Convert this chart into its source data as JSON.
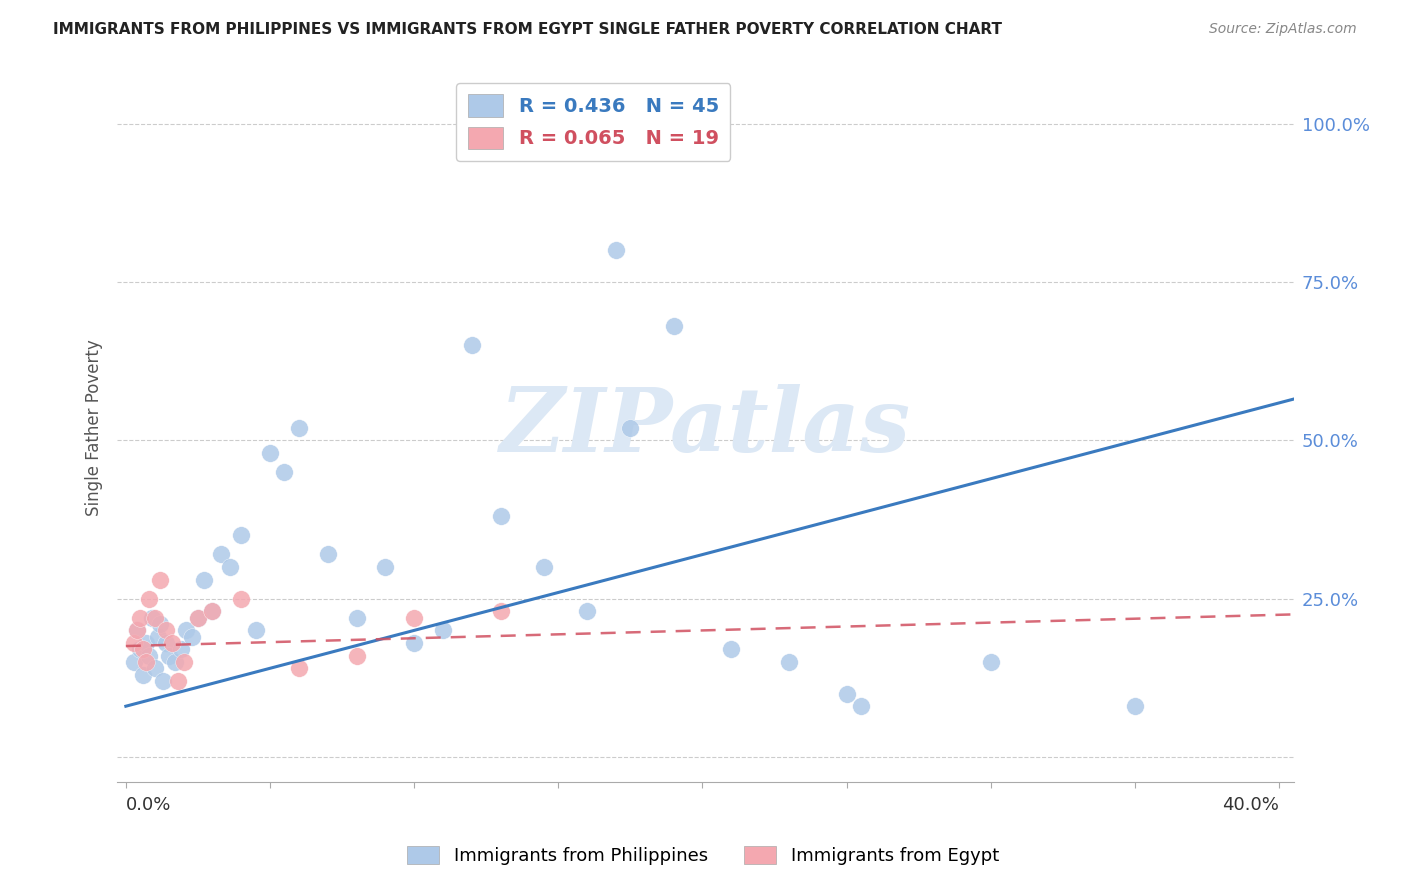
{
  "title": "IMMIGRANTS FROM PHILIPPINES VS IMMIGRANTS FROM EGYPT SINGLE FATHER POVERTY CORRELATION CHART",
  "source": "Source: ZipAtlas.com",
  "ylabel": "Single Father Poverty",
  "philippines_R": 0.436,
  "philippines_N": 45,
  "egypt_R": 0.065,
  "egypt_N": 19,
  "philippines_color": "#aec9e8",
  "egypt_color": "#f4a8b0",
  "philippines_line_color": "#3a7abf",
  "egypt_line_color": "#d05060",
  "watermark_color": "#dce8f5",
  "grid_color": "#cccccc",
  "ytick_color": "#5b8dd9",
  "xlim": [
    -0.003,
    0.405
  ],
  "ylim": [
    -0.04,
    1.08
  ],
  "yticks": [
    0.0,
    0.25,
    0.5,
    0.75,
    1.0
  ],
  "ytick_labels": [
    "",
    "25.0%",
    "50.0%",
    "75.0%",
    "100.0%"
  ],
  "phil_line_x0": 0.0,
  "phil_line_y0": 0.08,
  "phil_line_x1": 0.405,
  "phil_line_y1": 0.565,
  "egypt_line_x0": 0.0,
  "egypt_line_y0": 0.175,
  "egypt_line_x1": 0.405,
  "egypt_line_y1": 0.225,
  "philippines_x": [
    0.003,
    0.004,
    0.005,
    0.006,
    0.007,
    0.008,
    0.009,
    0.01,
    0.011,
    0.012,
    0.013,
    0.014,
    0.015,
    0.017,
    0.019,
    0.021,
    0.023,
    0.025,
    0.027,
    0.03,
    0.033,
    0.036,
    0.04,
    0.045,
    0.05,
    0.055,
    0.06,
    0.07,
    0.08,
    0.09,
    0.1,
    0.11,
    0.12,
    0.13,
    0.145,
    0.16,
    0.175,
    0.19,
    0.21,
    0.23,
    0.255,
    0.17,
    0.25,
    0.3,
    0.35
  ],
  "philippines_y": [
    0.15,
    0.2,
    0.17,
    0.13,
    0.18,
    0.16,
    0.22,
    0.14,
    0.19,
    0.21,
    0.12,
    0.18,
    0.16,
    0.15,
    0.17,
    0.2,
    0.19,
    0.22,
    0.28,
    0.23,
    0.32,
    0.3,
    0.35,
    0.2,
    0.48,
    0.45,
    0.52,
    0.32,
    0.22,
    0.3,
    0.18,
    0.2,
    0.65,
    0.38,
    0.3,
    0.23,
    0.52,
    0.68,
    0.17,
    0.15,
    0.08,
    0.8,
    0.1,
    0.15,
    0.08
  ],
  "egypt_x": [
    0.003,
    0.004,
    0.005,
    0.006,
    0.007,
    0.008,
    0.01,
    0.012,
    0.014,
    0.016,
    0.018,
    0.02,
    0.025,
    0.03,
    0.04,
    0.06,
    0.08,
    0.1,
    0.13
  ],
  "egypt_y": [
    0.18,
    0.2,
    0.22,
    0.17,
    0.15,
    0.25,
    0.22,
    0.28,
    0.2,
    0.18,
    0.12,
    0.15,
    0.22,
    0.23,
    0.25,
    0.14,
    0.16,
    0.22,
    0.23
  ]
}
